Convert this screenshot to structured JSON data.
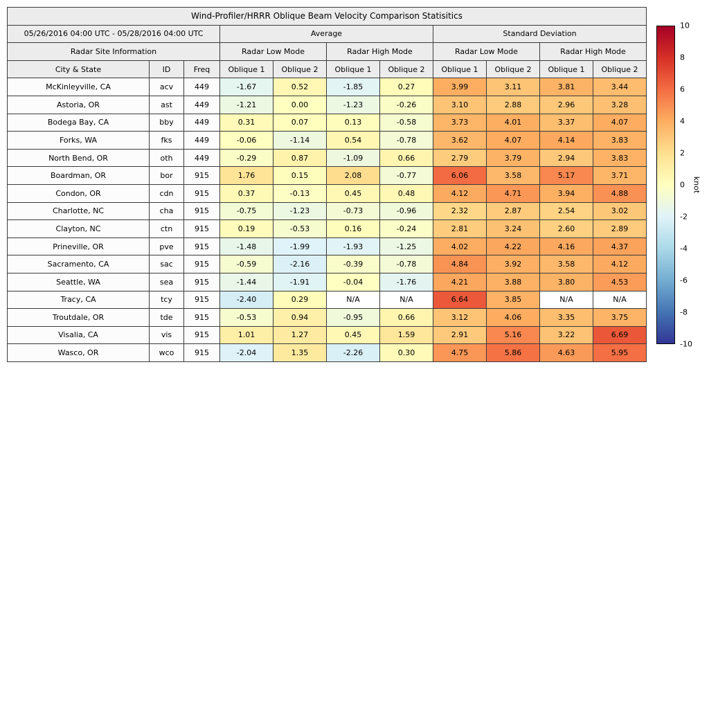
{
  "colors": {
    "header_bg": "#ececec",
    "label_cell_bg": "#fcfcfc",
    "na_cell_bg": "#ffffff",
    "border": "#3a3a3a",
    "background": "#ffffff"
  },
  "chart_data": {
    "type": "heatmap-table",
    "title": "Wind-Profiler/HRRR Oblique Beam Velocity Comparison Statisitics",
    "period": "05/26/2016 04:00 UTC - 05/28/2016 04:00 UTC",
    "site_info_header": "Radar Site Information",
    "group_headers": [
      "Average",
      "Standard Deviation"
    ],
    "mode_headers": [
      "Radar Low Mode",
      "Radar High Mode",
      "Radar Low Mode",
      "Radar High Mode"
    ],
    "column_headers": [
      "City & State",
      "ID",
      "Freq",
      "Oblique 1",
      "Oblique 2",
      "Oblique 1",
      "Oblique 2",
      "Oblique 1",
      "Oblique 2",
      "Oblique 1",
      "Oblique 2"
    ],
    "rows": [
      {
        "city": "McKinleyville, CA",
        "id": "acv",
        "freq": "449",
        "values": [
          "-1.67",
          "0.52",
          "-1.85",
          "0.27",
          "3.99",
          "3.11",
          "3.81",
          "3.44"
        ]
      },
      {
        "city": "Astoria, OR",
        "id": "ast",
        "freq": "449",
        "values": [
          "-1.21",
          "0.00",
          "-1.23",
          "-0.26",
          "3.10",
          "2.88",
          "2.96",
          "3.28"
        ]
      },
      {
        "city": "Bodega Bay, CA",
        "id": "bby",
        "freq": "449",
        "values": [
          "0.31",
          "0.07",
          "0.13",
          "-0.58",
          "3.73",
          "4.01",
          "3.37",
          "4.07"
        ]
      },
      {
        "city": "Forks, WA",
        "id": "fks",
        "freq": "449",
        "values": [
          "-0.06",
          "-1.14",
          "0.54",
          "-0.78",
          "3.62",
          "4.07",
          "4.14",
          "3.83"
        ]
      },
      {
        "city": "North Bend, OR",
        "id": "oth",
        "freq": "449",
        "values": [
          "-0.29",
          "0.87",
          "-1.09",
          "0.66",
          "2.79",
          "3.79",
          "2.94",
          "3.83"
        ]
      },
      {
        "city": "Boardman, OR",
        "id": "bor",
        "freq": "915",
        "values": [
          "1.76",
          "0.15",
          "2.08",
          "-0.77",
          "6.06",
          "3.58",
          "5.17",
          "3.71"
        ]
      },
      {
        "city": "Condon, OR",
        "id": "cdn",
        "freq": "915",
        "values": [
          "0.37",
          "-0.13",
          "0.45",
          "0.48",
          "4.12",
          "4.71",
          "3.94",
          "4.88"
        ]
      },
      {
        "city": "Charlotte, NC",
        "id": "cha",
        "freq": "915",
        "values": [
          "-0.75",
          "-1.23",
          "-0.73",
          "-0.96",
          "2.32",
          "2.87",
          "2.54",
          "3.02"
        ]
      },
      {
        "city": "Clayton, NC",
        "id": "ctn",
        "freq": "915",
        "values": [
          "0.19",
          "-0.53",
          "0.16",
          "-0.24",
          "2.81",
          "3.24",
          "2.60",
          "2.89"
        ]
      },
      {
        "city": "Prineville, OR",
        "id": "pve",
        "freq": "915",
        "values": [
          "-1.48",
          "-1.99",
          "-1.93",
          "-1.25",
          "4.02",
          "4.22",
          "4.16",
          "4.37"
        ]
      },
      {
        "city": "Sacramento, CA",
        "id": "sac",
        "freq": "915",
        "values": [
          "-0.59",
          "-2.16",
          "-0.39",
          "-0.78",
          "4.84",
          "3.92",
          "3.58",
          "4.12"
        ]
      },
      {
        "city": "Seattle, WA",
        "id": "sea",
        "freq": "915",
        "values": [
          "-1.44",
          "-1.91",
          "-0.04",
          "-1.76",
          "4.21",
          "3.88",
          "3.80",
          "4.53"
        ]
      },
      {
        "city": "Tracy, CA",
        "id": "tcy",
        "freq": "915",
        "values": [
          "-2.40",
          "0.29",
          "N/A",
          "N/A",
          "6.64",
          "3.85",
          "N/A",
          "N/A"
        ]
      },
      {
        "city": "Troutdale, OR",
        "id": "tde",
        "freq": "915",
        "values": [
          "-0.53",
          "0.94",
          "-0.95",
          "0.66",
          "3.12",
          "4.06",
          "3.35",
          "3.75"
        ]
      },
      {
        "city": "Visalia, CA",
        "id": "vis",
        "freq": "915",
        "values": [
          "1.01",
          "1.27",
          "0.45",
          "1.59",
          "2.91",
          "5.16",
          "3.22",
          "6.69"
        ]
      },
      {
        "city": "Wasco, OR",
        "id": "wco",
        "freq": "915",
        "values": [
          "-2.04",
          "1.35",
          "-2.26",
          "0.30",
          "4.75",
          "5.86",
          "4.63",
          "5.95"
        ]
      }
    ],
    "colorbar": {
      "label": "knot",
      "min": -10,
      "max": 10,
      "ticks": [
        10,
        8,
        6,
        4,
        2,
        0,
        -2,
        -4,
        -6,
        -8,
        -10
      ],
      "stops": [
        "#313695",
        "#4575b4",
        "#74add1",
        "#abd9e9",
        "#e0f3f8",
        "#ffffbf",
        "#fee090",
        "#fdae61",
        "#f46d43",
        "#d73027",
        "#a50026"
      ]
    }
  }
}
